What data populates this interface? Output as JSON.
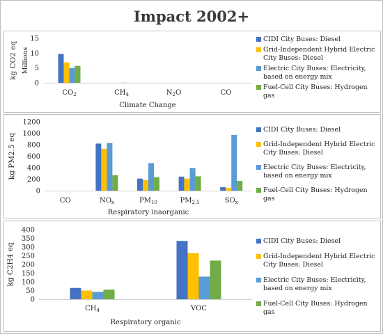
{
  "title": "Impact 2002+",
  "colors": {
    "CIDI City Buses: Diesel": "#4472C4",
    "Grid-Independent Hybrid Electric City Buses: Diesel": "#FFC000",
    "Electric City Buses: Electricity, based on energy mix": "#5B9BD5",
    "Fuel-Cell City Buses: Hydrogen gas": "#70AD47"
  },
  "legend": [
    "CIDI City Buses: Diesel",
    "Grid-Independent Hybrid Electric City Buses: Diesel",
    "Electric City Buses: Electricity, based on energy mix",
    "Fuel-Cell City Buses: Hydrogen gas"
  ],
  "chart_data": [
    {
      "type": "bar",
      "ylabel": "kg CO2 eq",
      "yunit": "Millions",
      "xlabel": "Climate Change",
      "categories": [
        "CO2",
        "CH4",
        "N2O",
        "CO"
      ],
      "category_labels": [
        {
          "base": "CO",
          "sub": "2"
        },
        {
          "base": "CH",
          "sub": "4"
        },
        {
          "base": "N",
          "sub": "2",
          "after": "O"
        },
        {
          "base": "CO",
          "sub": ""
        }
      ],
      "ylim": [
        0,
        15
      ],
      "yticks": [
        0,
        5,
        10,
        15
      ],
      "grid": false,
      "legend_position": "right",
      "series": [
        {
          "name": "CIDI City Buses: Diesel",
          "values": [
            9.7,
            0.0,
            0.0,
            0.0
          ]
        },
        {
          "name": "Grid-Independent Hybrid Electric City Buses: Diesel",
          "values": [
            6.9,
            0.0,
            0.0,
            0.0
          ]
        },
        {
          "name": "Electric City Buses: Electricity, based on energy mix",
          "values": [
            5.0,
            0.05,
            0.0,
            0.0
          ]
        },
        {
          "name": "Fuel-Cell City Buses: Hydrogen gas",
          "values": [
            5.7,
            0.0,
            0.0,
            0.0
          ]
        }
      ]
    },
    {
      "type": "bar",
      "ylabel": "kg PM2.5 eq",
      "xlabel": "Respiratory inaorganic",
      "categories": [
        "CO",
        "NOx",
        "PM10",
        "PM2.5",
        "SOx"
      ],
      "category_labels": [
        {
          "base": "CO",
          "sub": ""
        },
        {
          "base": "NO",
          "sub": "x"
        },
        {
          "base": "PM",
          "sub": "10"
        },
        {
          "base": "PM",
          "sub": "2.5"
        },
        {
          "base": "SO",
          "sub": "x"
        }
      ],
      "ylim": [
        0,
        1200
      ],
      "yticks": [
        0,
        200,
        400,
        600,
        800,
        1000,
        1200
      ],
      "grid": false,
      "legend_position": "right",
      "series": [
        {
          "name": "CIDI City Buses: Diesel",
          "values": [
            0,
            820,
            210,
            245,
            60
          ]
        },
        {
          "name": "Grid-Independent Hybrid Electric City Buses: Diesel",
          "values": [
            0,
            730,
            185,
            210,
            45
          ]
        },
        {
          "name": "Electric City Buses: Electricity, based on energy mix",
          "values": [
            0,
            830,
            480,
            395,
            970
          ]
        },
        {
          "name": "Fuel-Cell City Buses: Hydrogen gas",
          "values": [
            0,
            270,
            235,
            250,
            170
          ]
        }
      ]
    },
    {
      "type": "bar",
      "ylabel": "kg C2H4 eq",
      "xlabel": "Respiratory organic",
      "categories": [
        "CH4",
        "VOC"
      ],
      "category_labels": [
        {
          "base": "CH",
          "sub": "4"
        },
        {
          "base": "VOC",
          "sub": ""
        }
      ],
      "ylim": [
        0,
        400
      ],
      "yticks": [
        0,
        50,
        100,
        150,
        200,
        250,
        300,
        350,
        400
      ],
      "grid": false,
      "legend_position": "right",
      "series": [
        {
          "name": "CIDI City Buses: Diesel",
          "values": [
            65,
            335
          ]
        },
        {
          "name": "Grid-Independent Hybrid Electric City Buses: Diesel",
          "values": [
            50,
            265
          ]
        },
        {
          "name": "Electric City Buses: Electricity, based on energy mix",
          "values": [
            42,
            130
          ]
        },
        {
          "name": "Fuel-Cell City Buses: Hydrogen gas",
          "values": [
            55,
            222
          ]
        }
      ]
    }
  ]
}
